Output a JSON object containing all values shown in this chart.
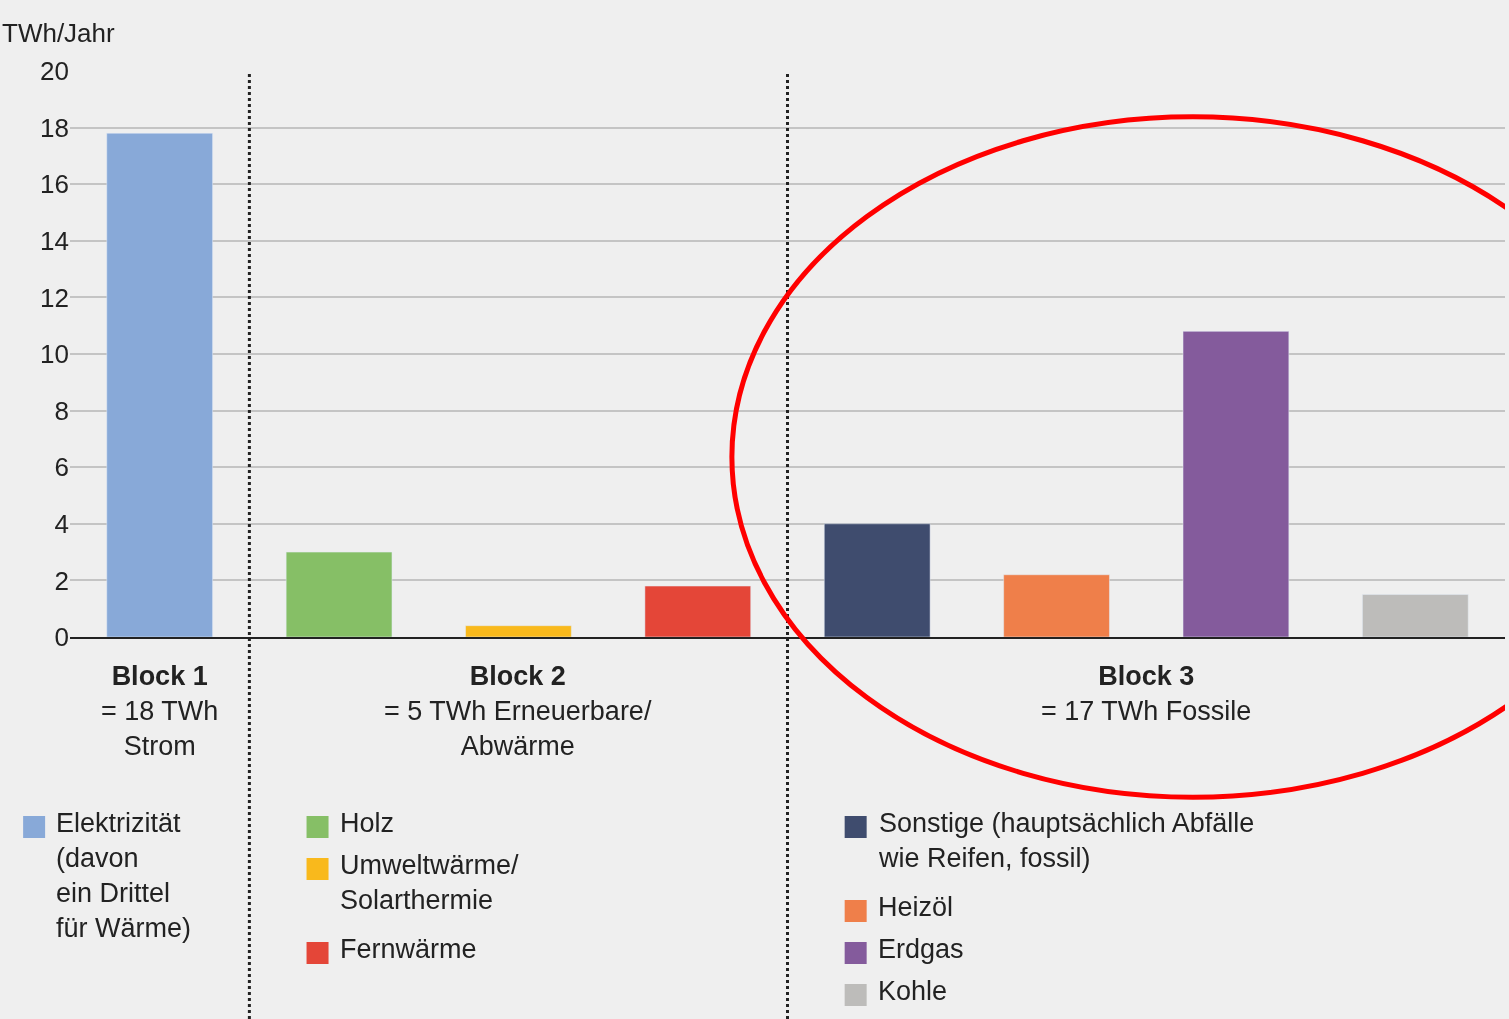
{
  "chart_data": {
    "type": "bar",
    "ylabel": "TWh/Jahr",
    "categories": [
      null,
      null,
      null,
      null,
      null,
      null,
      null,
      null
    ],
    "series": [
      {
        "name": "Elektrizität\n(davon\nein Drittel\nfür Wärme)",
        "color": "#88a9d8",
        "values": [
          17.8,
          null,
          null,
          null,
          null,
          null,
          null,
          null
        ]
      },
      {
        "name": "Holz",
        "color": "#86bf66",
        "values": [
          null,
          3.0,
          null,
          null,
          null,
          null,
          null,
          null
        ]
      },
      {
        "name": "Umweltwärme/\nSolarthermie",
        "color": "#f9b91c",
        "values": [
          null,
          null,
          0.4,
          null,
          null,
          null,
          null,
          null
        ]
      },
      {
        "name": "Fernwärme",
        "color": "#e44638",
        "values": [
          null,
          null,
          null,
          1.8,
          null,
          null,
          null,
          null
        ]
      },
      {
        "name": "Sonstige (hauptsächlich Abfälle\nwie Reifen, fossil)",
        "color": "#3f4c6e",
        "values": [
          null,
          null,
          null,
          null,
          4.0,
          null,
          null,
          null
        ]
      },
      {
        "name": "Heizöl",
        "color": "#ef7f4a",
        "values": [
          null,
          null,
          null,
          null,
          null,
          2.2,
          null,
          null
        ]
      },
      {
        "name": "Erdgas",
        "color": "#845b9c",
        "values": [
          null,
          null,
          null,
          null,
          null,
          null,
          10.8,
          null
        ]
      },
      {
        "name": "Kohle",
        "color": "#bdbcba",
        "values": [
          null,
          null,
          null,
          null,
          null,
          null,
          null,
          1.5
        ]
      }
    ],
    "ylim": [
      0,
      20
    ],
    "yticks": [
      0,
      2,
      4,
      6,
      8,
      10,
      12,
      14,
      16,
      18,
      20
    ],
    "grid": "y",
    "legend": "bottom",
    "annotations": [
      "Block 1\n= 18 TWh\nStrom",
      "Block 2\n= 5 TWh Erneuerbare/\nAbwärme",
      "Block 3\n= 17 TWh Fossile"
    ]
  }
}
